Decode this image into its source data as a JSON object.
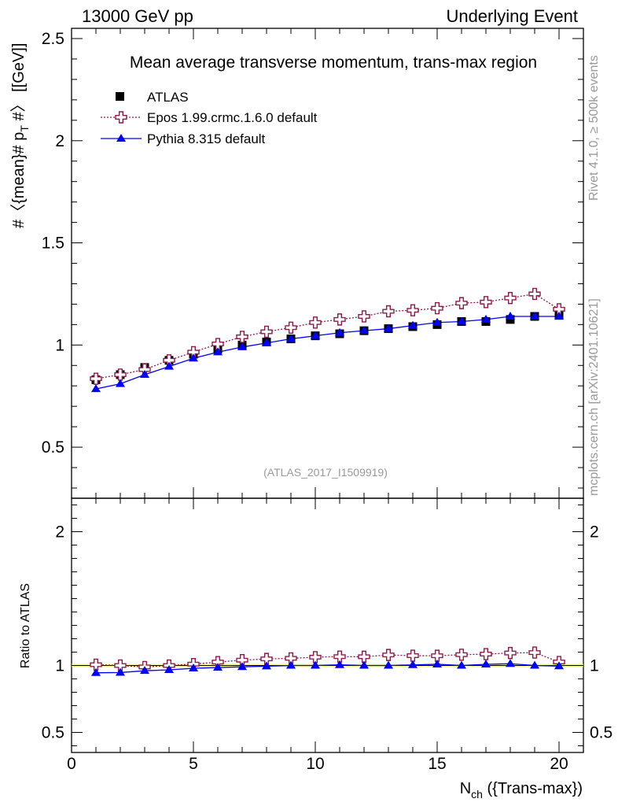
{
  "header": {
    "left": "13000 GeV pp",
    "right": "Underlying Event"
  },
  "side": {
    "rivet": "Rivet 4.1.0, ≥ 500k events",
    "mcplots": "mcplots.cern.ch [arXiv:2401.10621]"
  },
  "chart_data": {
    "type": "scatter",
    "title": "Mean average transverse momentum, trans-max region",
    "reference_label": "(ATLAS_2017_I1509919)",
    "ylabel": "#〈{mean}# p_T #〉 [[GeV]]",
    "ylabel_main": "#〈{mean}# p",
    "ylabel_sub": "T",
    "ylabel_tail": " #〉 [[GeV]]",
    "xlabel_main": "N",
    "xlabel_sub": "ch",
    "xlabel_tail": " ({Trans-max})",
    "ratio_ylabel": "Ratio to ATLAS",
    "xlim": [
      0,
      21
    ],
    "ylim": [
      0.25,
      2.55
    ],
    "ratio_ylim": [
      0.35,
      2.25
    ],
    "x_ticks": [
      "0",
      "5",
      "10",
      "15",
      "20"
    ],
    "y_ticks": [
      "0.5",
      "1",
      "1.5",
      "2",
      "2.5"
    ],
    "ratio_ticks_left": [
      "0.5",
      "1",
      "2"
    ],
    "ratio_ticks_right": [
      "0.5",
      "1",
      "2"
    ],
    "x": [
      1,
      2,
      3,
      4,
      5,
      6,
      7,
      8,
      9,
      10,
      11,
      12,
      13,
      14,
      15,
      16,
      17,
      18,
      19,
      20
    ],
    "series": [
      {
        "name": "ATLAS",
        "color": "#000000",
        "marker": "square",
        "values": [
          0.83,
          0.855,
          0.89,
          0.925,
          0.955,
          0.98,
          1.0,
          1.015,
          1.03,
          1.045,
          1.055,
          1.07,
          1.08,
          1.09,
          1.1,
          1.115,
          1.115,
          1.125,
          1.14,
          1.145
        ]
      },
      {
        "name": "Epos 1.99.crmc.1.6.0 default",
        "color": "#8b1a4a",
        "marker": "open-cross",
        "values": [
          0.835,
          0.855,
          0.88,
          0.925,
          0.965,
          1.005,
          1.04,
          1.065,
          1.085,
          1.11,
          1.125,
          1.14,
          1.165,
          1.17,
          1.18,
          1.205,
          1.21,
          1.23,
          1.25,
          1.175
        ]
      },
      {
        "name": "Pythia 8.315 default",
        "color": "#0000ff",
        "marker": "triangle",
        "values": [
          0.785,
          0.81,
          0.855,
          0.895,
          0.935,
          0.965,
          0.99,
          1.01,
          1.03,
          1.045,
          1.06,
          1.07,
          1.08,
          1.095,
          1.11,
          1.115,
          1.125,
          1.14,
          1.14,
          1.14
        ]
      }
    ]
  }
}
